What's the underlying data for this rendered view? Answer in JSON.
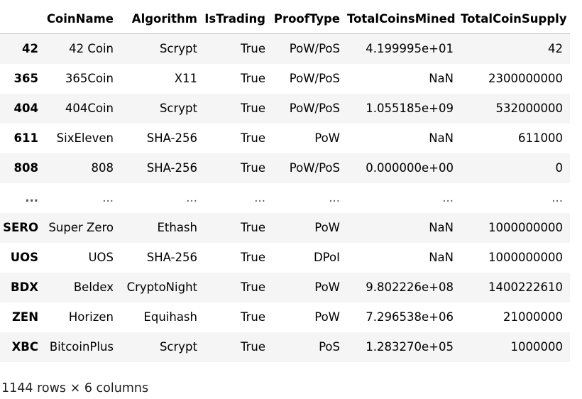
{
  "table": {
    "columns": [
      "CoinName",
      "Algorithm",
      "IsTrading",
      "ProofType",
      "TotalCoinsMined",
      "TotalCoinSupply"
    ],
    "rows": [
      {
        "index": "42",
        "cells": [
          "42 Coin",
          "Scrypt",
          "True",
          "PoW/PoS",
          "4.199995e+01",
          "42"
        ]
      },
      {
        "index": "365",
        "cells": [
          "365Coin",
          "X11",
          "True",
          "PoW/PoS",
          "NaN",
          "2300000000"
        ]
      },
      {
        "index": "404",
        "cells": [
          "404Coin",
          "Scrypt",
          "True",
          "PoW/PoS",
          "1.055185e+09",
          "532000000"
        ]
      },
      {
        "index": "611",
        "cells": [
          "SixEleven",
          "SHA-256",
          "True",
          "PoW",
          "NaN",
          "611000"
        ]
      },
      {
        "index": "808",
        "cells": [
          "808",
          "SHA-256",
          "True",
          "PoW/PoS",
          "0.000000e+00",
          "0"
        ]
      },
      {
        "index": "...",
        "cells": [
          "...",
          "...",
          "...",
          "...",
          "...",
          "..."
        ]
      },
      {
        "index": "SERO",
        "cells": [
          "Super Zero",
          "Ethash",
          "True",
          "PoW",
          "NaN",
          "1000000000"
        ]
      },
      {
        "index": "UOS",
        "cells": [
          "UOS",
          "SHA-256",
          "True",
          "DPoI",
          "NaN",
          "1000000000"
        ]
      },
      {
        "index": "BDX",
        "cells": [
          "Beldex",
          "CryptoNight",
          "True",
          "PoW",
          "9.802226e+08",
          "1400222610"
        ]
      },
      {
        "index": "ZEN",
        "cells": [
          "Horizen",
          "Equihash",
          "True",
          "PoW",
          "7.296538e+06",
          "21000000"
        ]
      },
      {
        "index": "XBC",
        "cells": [
          "BitcoinPlus",
          "Scrypt",
          "True",
          "PoS",
          "1.283270e+05",
          "1000000"
        ]
      }
    ]
  },
  "footer": {
    "shape_text": "1144 rows × 6 columns"
  }
}
